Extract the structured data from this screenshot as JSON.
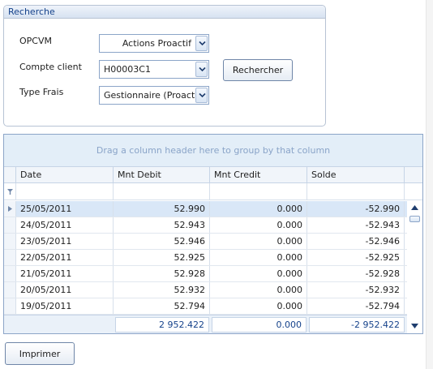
{
  "search": {
    "title": "Recherche",
    "opcvm_label": "OPCVM",
    "opcvm_value": "Actions Proactif",
    "compte_label": "Compte client",
    "compte_value": "H00003C1",
    "type_frais_label": "Type Frais",
    "type_frais_value": "Gestionnaire (Proactif)",
    "search_button": "Rechercher"
  },
  "grid": {
    "group_hint": "Drag a column header here to group by that column",
    "columns": [
      "Date",
      "Mnt Debit",
      "Mnt Credit",
      "Solde"
    ],
    "rows": [
      {
        "date": "25/05/2011",
        "debit": "52.990",
        "credit": "0.000",
        "solde": "-52.990"
      },
      {
        "date": "24/05/2011",
        "debit": "52.943",
        "credit": "0.000",
        "solde": "-52.943"
      },
      {
        "date": "23/05/2011",
        "debit": "52.946",
        "credit": "0.000",
        "solde": "-52.946"
      },
      {
        "date": "22/05/2011",
        "debit": "52.925",
        "credit": "0.000",
        "solde": "-52.925"
      },
      {
        "date": "21/05/2011",
        "debit": "52.928",
        "credit": "0.000",
        "solde": "-52.928"
      },
      {
        "date": "20/05/2011",
        "debit": "52.932",
        "credit": "0.000",
        "solde": "-52.932"
      },
      {
        "date": "19/05/2011",
        "debit": "52.794",
        "credit": "0.000",
        "solde": "-52.794"
      }
    ],
    "totals": {
      "debit": "2 952.422",
      "credit": "0.000",
      "solde": "-2 952.422"
    },
    "selected_row": 0
  },
  "print_button": "Imprimer",
  "icons": {
    "dropdown": "chevron-down-icon",
    "filter": "filter-icon",
    "row_indicator": "triangle-right-icon",
    "scroll_up": "triangle-up-icon",
    "scroll_down": "triangle-down-icon"
  },
  "colors": {
    "accent": "#15428b",
    "group_panel_bg": "#e3eef8",
    "selected_row_bg": "#d9e7f7",
    "border": "#8ca5c8"
  }
}
